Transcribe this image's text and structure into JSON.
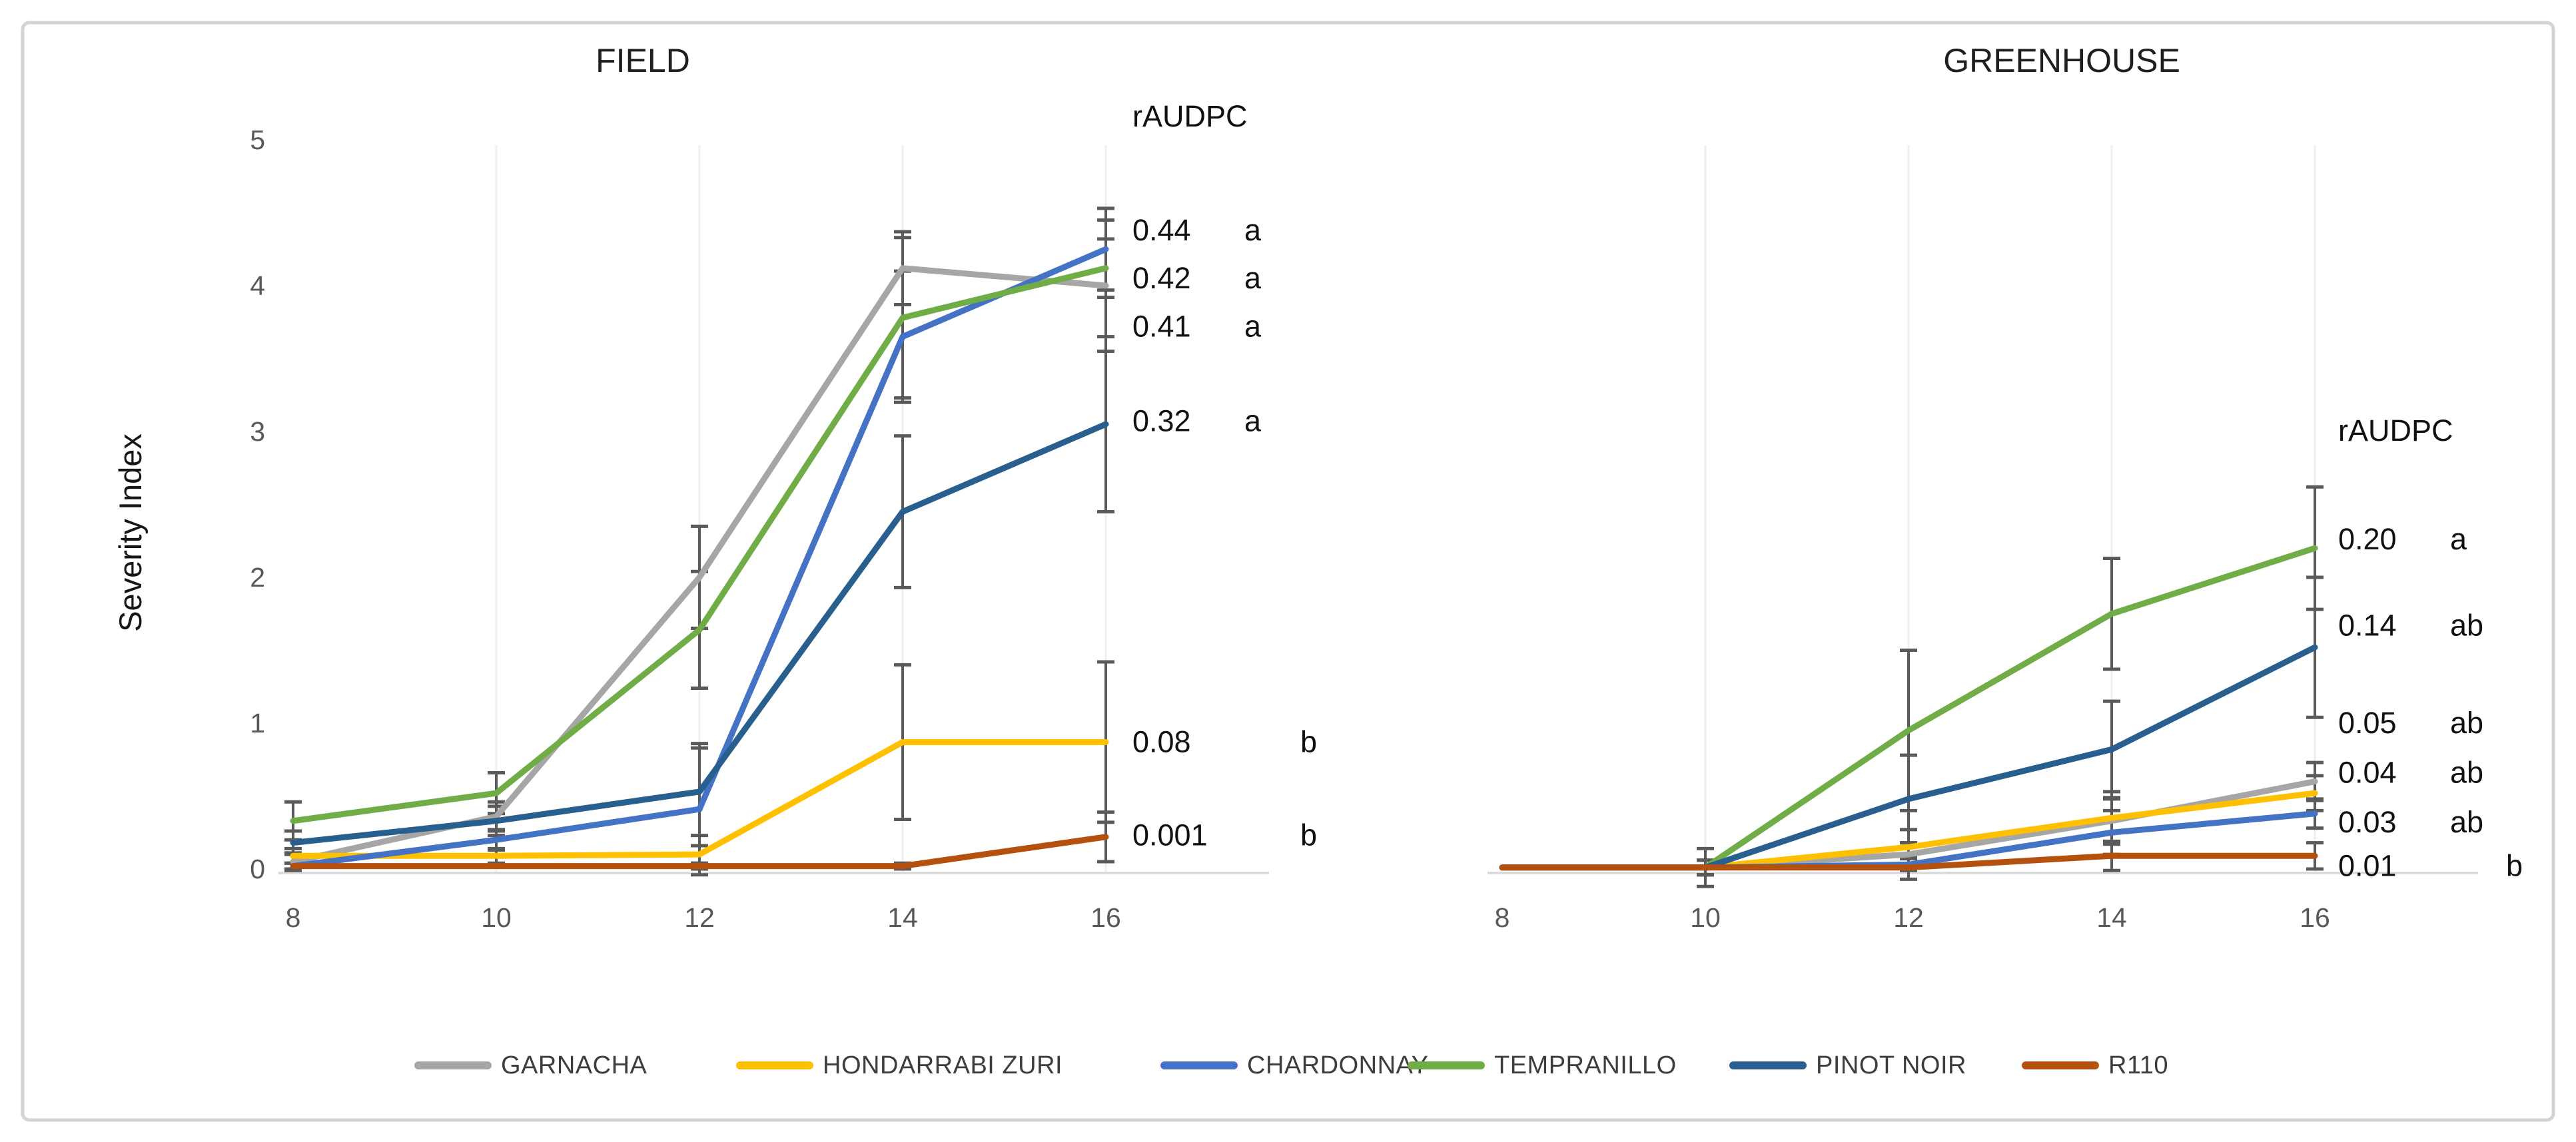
{
  "figure": {
    "background": "#ffffff",
    "frame_color": "#d4d4d4",
    "axis_color": "#d9d9d9",
    "errorbar_color": "#5a5a5a",
    "tick_color": "#595959"
  },
  "chart_data": [
    {
      "type": "line",
      "title": "FIELD",
      "raudpc_header": "rAUDPC",
      "ylabel": "Severity Index",
      "xlabel": "",
      "x": [
        8,
        10,
        12,
        14,
        16
      ],
      "x_ticks": [
        "8",
        "10",
        "12",
        "14",
        "16"
      ],
      "y_ticks": [
        "0",
        "1",
        "2",
        "3",
        "4",
        "5"
      ],
      "ylim": [
        0,
        5
      ],
      "grid": "faint-vertical",
      "legend_position": "bottom-shared",
      "series": [
        {
          "name": "GARNACHA",
          "color": "#A6A6A6",
          "values": [
            0.05,
            0.36,
            2.0,
            4.12,
            4.0
          ],
          "err": [
            0.06,
            0.1,
            0.35,
            0.25,
            0.45
          ]
        },
        {
          "name": "HONDARRABI ZURI",
          "color": "#FFC000",
          "values": [
            0.09,
            0.09,
            0.1,
            0.87,
            0.87
          ],
          "err": [
            0.05,
            0.05,
            0.06,
            0.53,
            0.55
          ]
        },
        {
          "name": "CHARDONNAY",
          "color": "#4472C4",
          "values": [
            0.02,
            0.2,
            0.41,
            3.65,
            4.25
          ],
          "err": [
            0.02,
            0.07,
            0.45,
            0.45,
            0.28
          ]
        },
        {
          "name": "TEMPRANILLO",
          "color": "#70AD47",
          "values": [
            0.33,
            0.52,
            1.64,
            3.78,
            4.12
          ],
          "err": [
            0.13,
            0.14,
            0.4,
            0.55,
            0.2
          ]
        },
        {
          "name": "PINOT NOIR",
          "color": "#295F8F",
          "values": [
            0.18,
            0.33,
            0.53,
            2.45,
            3.05
          ],
          "err": [
            0.08,
            0.1,
            0.3,
            0.52,
            0.6
          ]
        },
        {
          "name": "R110",
          "color": "#B5510F",
          "values": [
            0.02,
            0.02,
            0.02,
            0.02,
            0.22
          ],
          "err": [
            0.01,
            0.01,
            0.02,
            0.02,
            0.17
          ]
        }
      ],
      "annotations": [
        {
          "value": "0.44",
          "letter": "a",
          "anchor_v": 4.38
        },
        {
          "value": "0.42",
          "letter": "a",
          "anchor_v": 4.05
        },
        {
          "value": "0.41",
          "letter": "a",
          "anchor_v": 3.72
        },
        {
          "value": "0.32",
          "letter": "a",
          "anchor_v": 3.07
        },
        {
          "value": "0.08",
          "letter": "b",
          "anchor_v": 0.87
        },
        {
          "value": "0.001",
          "letter": "b",
          "anchor_v": 0.23
        }
      ]
    },
    {
      "type": "line",
      "title": "GREENHOUSE",
      "raudpc_header": "rAUDPC",
      "ylabel": "",
      "xlabel": "",
      "x": [
        8,
        10,
        12,
        14,
        16
      ],
      "x_ticks": [
        "8",
        "10",
        "12",
        "14",
        "16"
      ],
      "y_ticks": [],
      "ylim": [
        0,
        5
      ],
      "grid": "faint-vertical",
      "legend_position": "bottom-shared",
      "series": [
        {
          "name": "GARNACHA",
          "color": "#A6A6A6",
          "values": [
            0.01,
            0.01,
            0.1,
            0.33,
            0.6
          ],
          "err": [
            0,
            0.05,
            0.08,
            0.15,
            0.13
          ]
        },
        {
          "name": "HONDARRABI ZURI",
          "color": "#FFC000",
          "values": [
            0.01,
            0.01,
            0.15,
            0.35,
            0.52
          ],
          "err": [
            0,
            0.05,
            0.12,
            0.18,
            0.12
          ]
        },
        {
          "name": "CHARDONNAY",
          "color": "#4472C4",
          "values": [
            0.01,
            0.01,
            0.03,
            0.25,
            0.38
          ],
          "err": [
            0,
            0.05,
            0.04,
            0.15,
            0.1
          ]
        },
        {
          "name": "TEMPRANILLO",
          "color": "#70AD47",
          "values": [
            0.01,
            0.01,
            0.95,
            1.75,
            2.2
          ],
          "err": [
            0,
            0.13,
            0.55,
            0.38,
            0.42
          ]
        },
        {
          "name": "PINOT NOIR",
          "color": "#295F8F",
          "values": [
            0.01,
            0.01,
            0.48,
            0.82,
            1.52
          ],
          "err": [
            0,
            0.05,
            0.3,
            0.33,
            0.48
          ]
        },
        {
          "name": "R110",
          "color": "#B5510F",
          "values": [
            0.01,
            0.01,
            0.01,
            0.09,
            0.09
          ],
          "err": [
            0,
            0.05,
            0.08,
            0.1,
            0.09
          ]
        }
      ],
      "annotations": [
        {
          "value": "0.20",
          "letter": "a",
          "anchor_v": 2.26
        },
        {
          "value": "0.14",
          "letter": "ab",
          "anchor_v": 1.67
        },
        {
          "value": "0.05",
          "letter": "ab",
          "anchor_v": 1.0
        },
        {
          "value": "0.04",
          "letter": "ab",
          "anchor_v": 0.66
        },
        {
          "value": "0.03",
          "letter": "ab",
          "anchor_v": 0.32
        },
        {
          "value": "0.01",
          "letter": "b",
          "anchor_v": 0.02
        }
      ]
    }
  ]
}
